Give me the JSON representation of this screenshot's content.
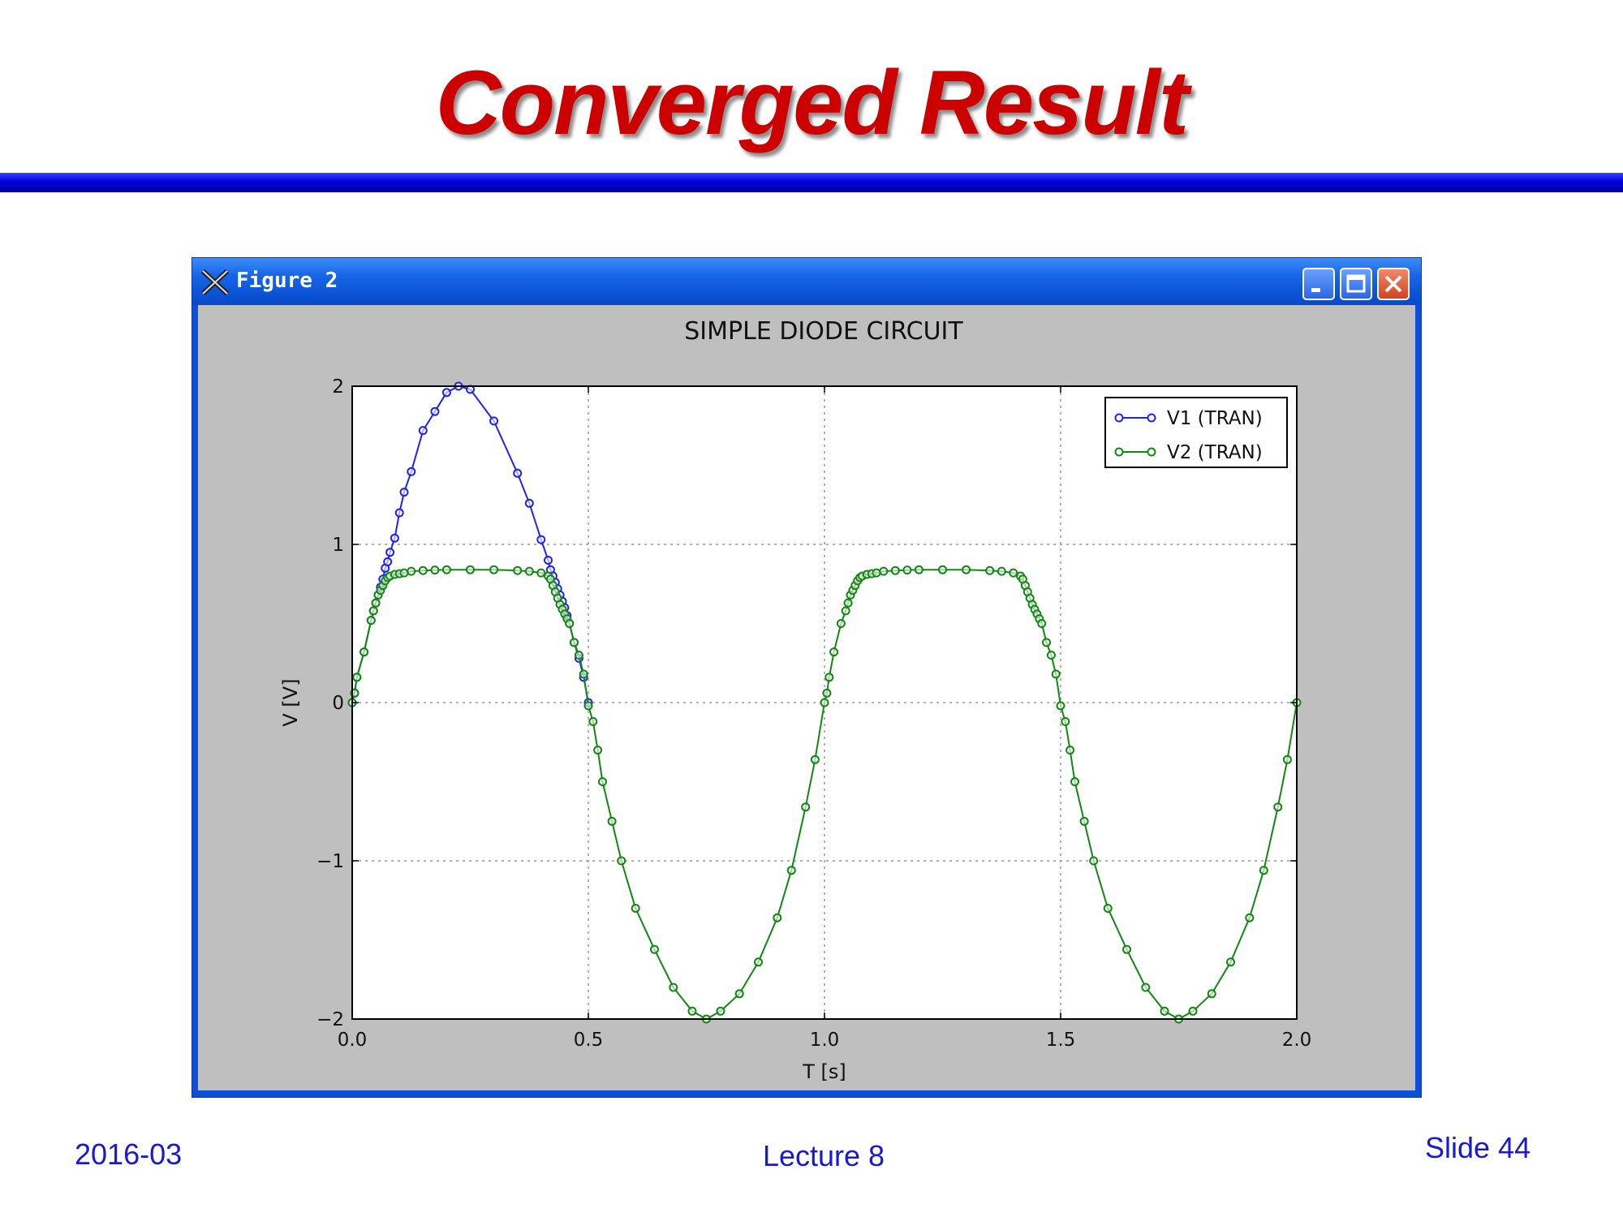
{
  "slide": {
    "title": "Converged Result",
    "footer_left": "2016-03",
    "footer_center": "Lecture 8",
    "footer_right": "Slide 44"
  },
  "window": {
    "title": "Figure 2",
    "icon": "x-window-icon",
    "buttons": [
      "minimize-icon",
      "maximize-icon",
      "close-icon"
    ]
  },
  "colors": {
    "title": "#cc0000",
    "v1": "#2222ee",
    "v2": "#118811",
    "window_frame": "#0d4fd8",
    "figure_bg": "#bfbfbf"
  },
  "chart_data": {
    "type": "line",
    "title": "SIMPLE DIODE CIRCUIT",
    "xlabel": "T [s]",
    "ylabel": "V [V]",
    "xlim": [
      0,
      2
    ],
    "ylim": [
      -2,
      2
    ],
    "xticks": [
      0.0,
      0.5,
      1.0,
      1.5,
      2.0
    ],
    "xtick_labels": [
      "0.0",
      "0.5",
      "1.0",
      "1.5",
      "2.0"
    ],
    "yticks": [
      2,
      1,
      0,
      -1,
      -2
    ],
    "ytick_labels": [
      "2",
      "1",
      "0",
      "−1",
      "−2"
    ],
    "grid": true,
    "legend_position": "top-right",
    "marker": "circle",
    "series": [
      {
        "name": "V1 (TRAN)",
        "color": "#2222ee",
        "x": [
          0,
          0.005,
          0.01,
          0.025,
          0.04,
          0.045,
          0.05,
          0.055,
          0.06,
          0.065,
          0.07,
          0.075,
          0.08,
          0.09,
          0.1,
          0.11,
          0.125,
          0.15,
          0.175,
          0.2,
          0.225,
          0.25,
          0.3,
          0.35,
          0.375,
          0.4,
          0.415,
          0.42,
          0.425,
          0.43,
          0.435,
          0.44,
          0.445,
          0.45,
          0.455,
          0.46,
          0.47,
          0.48,
          0.49,
          0.5
        ],
        "y": [
          0,
          0.06,
          0.16,
          0.32,
          0.52,
          0.58,
          0.63,
          0.68,
          0.73,
          0.78,
          0.85,
          0.89,
          0.95,
          1.04,
          1.2,
          1.33,
          1.46,
          1.72,
          1.84,
          1.96,
          2.0,
          1.98,
          1.78,
          1.45,
          1.26,
          1.03,
          0.9,
          0.84,
          0.8,
          0.76,
          0.72,
          0.68,
          0.64,
          0.6,
          0.55,
          0.5,
          0.38,
          0.28,
          0.16,
          0.0
        ]
      },
      {
        "name": "V2 (TRAN)",
        "color": "#118811",
        "x": [
          0,
          0.005,
          0.01,
          0.025,
          0.04,
          0.045,
          0.05,
          0.055,
          0.06,
          0.065,
          0.07,
          0.075,
          0.08,
          0.09,
          0.1,
          0.11,
          0.125,
          0.15,
          0.175,
          0.2,
          0.25,
          0.3,
          0.35,
          0.375,
          0.4,
          0.415,
          0.42,
          0.425,
          0.43,
          0.435,
          0.44,
          0.445,
          0.45,
          0.455,
          0.46,
          0.47,
          0.48,
          0.49,
          0.5,
          0.51,
          0.52,
          0.53,
          0.55,
          0.57,
          0.6,
          0.64,
          0.68,
          0.72,
          0.75,
          0.78,
          0.82,
          0.86,
          0.9,
          0.93,
          0.96,
          0.98,
          1.0,
          1.005,
          1.01,
          1.02,
          1.035,
          1.045,
          1.05,
          1.055,
          1.06,
          1.065,
          1.07,
          1.075,
          1.08,
          1.09,
          1.1,
          1.11,
          1.125,
          1.15,
          1.175,
          1.2,
          1.25,
          1.3,
          1.35,
          1.375,
          1.4,
          1.415,
          1.42,
          1.425,
          1.43,
          1.435,
          1.44,
          1.445,
          1.45,
          1.455,
          1.46,
          1.47,
          1.48,
          1.49,
          1.5,
          1.51,
          1.52,
          1.53,
          1.55,
          1.57,
          1.6,
          1.64,
          1.68,
          1.72,
          1.75,
          1.78,
          1.82,
          1.86,
          1.9,
          1.93,
          1.96,
          1.98,
          2.0
        ],
        "y": [
          0,
          0.06,
          0.16,
          0.32,
          0.52,
          0.58,
          0.63,
          0.68,
          0.71,
          0.74,
          0.77,
          0.79,
          0.8,
          0.81,
          0.815,
          0.82,
          0.83,
          0.835,
          0.838,
          0.84,
          0.84,
          0.84,
          0.835,
          0.83,
          0.82,
          0.8,
          0.78,
          0.74,
          0.7,
          0.66,
          0.62,
          0.59,
          0.56,
          0.53,
          0.5,
          0.38,
          0.3,
          0.18,
          -0.02,
          -0.12,
          -0.3,
          -0.5,
          -0.75,
          -1.0,
          -1.3,
          -1.56,
          -1.8,
          -1.95,
          -2.0,
          -1.95,
          -1.84,
          -1.64,
          -1.36,
          -1.06,
          -0.66,
          -0.36,
          0.0,
          0.06,
          0.16,
          0.32,
          0.5,
          0.58,
          0.63,
          0.68,
          0.71,
          0.74,
          0.77,
          0.79,
          0.8,
          0.81,
          0.815,
          0.82,
          0.83,
          0.835,
          0.838,
          0.84,
          0.84,
          0.84,
          0.835,
          0.83,
          0.82,
          0.8,
          0.78,
          0.74,
          0.7,
          0.66,
          0.62,
          0.59,
          0.56,
          0.53,
          0.5,
          0.38,
          0.3,
          0.18,
          -0.02,
          -0.12,
          -0.3,
          -0.5,
          -0.75,
          -1.0,
          -1.3,
          -1.56,
          -1.8,
          -1.95,
          -2.0,
          -1.95,
          -1.84,
          -1.64,
          -1.36,
          -1.06,
          -0.66,
          -0.36,
          0.0
        ]
      }
    ]
  }
}
